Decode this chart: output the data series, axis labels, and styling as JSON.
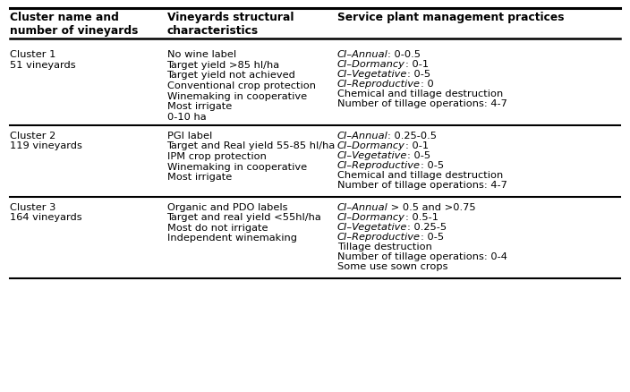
{
  "figsize": [
    7.04,
    4.38
  ],
  "dpi": 100,
  "bg_color": "#ffffff",
  "header": {
    "col1": "Cluster name and\nnumber of vineyards",
    "col2": "Vineyards structural\ncharacteristics",
    "col3": "Service plant management practices"
  },
  "rows": [
    {
      "col1": "Cluster 1\n51 vineyards",
      "col2": "No wine label\nTarget yield >85 hl/ha\nTarget yield not achieved\nConventional crop protection\nWinemaking in cooperative\nMost irrigate\n0-10 ha",
      "col3_parts": [
        [
          "CI–Annual",
          ": 0-0.5",
          true
        ],
        [
          "CI–Dormancy",
          ": 0-1",
          true
        ],
        [
          "CI–Vegetative",
          ": 0-5",
          true
        ],
        [
          "CI–Reproductive",
          ": 0",
          true
        ],
        [
          "Chemical and tillage destruction",
          "",
          false
        ],
        [
          "Number of tillage operations: 4-7",
          "",
          false
        ]
      ]
    },
    {
      "col1": "Cluster 2\n119 vineyards",
      "col2": "PGI label\nTarget and Real yield 55-85 hl/ha\nIPM crop protection\nWinemaking in cooperative\nMost irrigate",
      "col3_parts": [
        [
          "CI–Annual",
          ": 0.25-0.5",
          true
        ],
        [
          "CI–Dormancy",
          ": 0-1",
          true
        ],
        [
          "CI–Vegetative",
          ": 0-5",
          true
        ],
        [
          "CI–Reproductive",
          ": 0-5",
          true
        ],
        [
          "Chemical and tillage destruction",
          "",
          false
        ],
        [
          "Number of tillage operations: 4-7",
          "",
          false
        ]
      ]
    },
    {
      "col1": "Cluster 3\n164 vineyards",
      "col2": "Organic and PDO labels\nTarget and real yield <55hl/ha\nMost do not irrigate\nIndependent winemaking",
      "col3_parts": [
        [
          "CI–Annual",
          " > 0.5 and >0.75",
          true
        ],
        [
          "CI–Dormancy",
          ": 0.5-1",
          true
        ],
        [
          "CI–Vegetative",
          ": 0.25-5",
          true
        ],
        [
          "CI–Reproductive",
          ": 0-5",
          true
        ],
        [
          "Tillage destruction",
          "",
          false
        ],
        [
          "Number of tillage operations: 0-4",
          "",
          false
        ],
        [
          "Some use sown crops",
          "",
          false
        ]
      ]
    }
  ],
  "font_size": 8.2,
  "header_font_size": 8.8,
  "font_family": "DejaVu Sans"
}
